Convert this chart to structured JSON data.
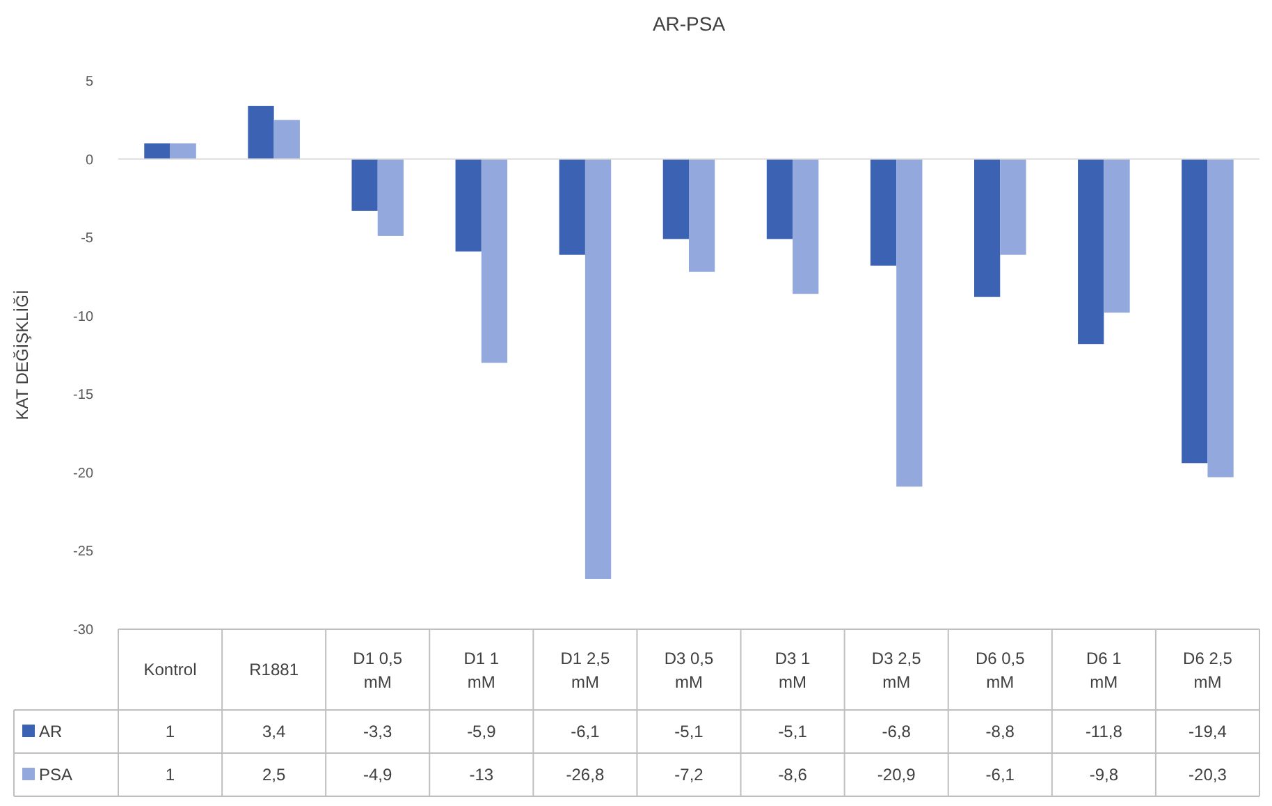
{
  "chart_data": {
    "type": "bar",
    "title": "AR-PSA",
    "ylabel": "KAT DEĞİŞKLİĞİ",
    "categories": [
      "Kontrol",
      "R1881",
      "D1 0,5 mM",
      "D1 1 mM",
      "D1 2,5 mM",
      "D3 0,5 mM",
      "D3 1 mM",
      "D3 2,5 mM",
      "D6 0,5 mM",
      "D6 1 mM",
      "D6 2,5 mM"
    ],
    "series": [
      {
        "name": "AR",
        "color": "#3c62b3",
        "values": [
          1,
          3.4,
          -3.3,
          -5.9,
          -6.1,
          -5.1,
          -5.1,
          -6.8,
          -8.8,
          -11.8,
          -19.4
        ],
        "value_labels": [
          "1",
          "3,4",
          "-3,3",
          "-5,9",
          "-6,1",
          "-5,1",
          "-5,1",
          "-6,8",
          "-8,8",
          "-11,8",
          "-19,4"
        ]
      },
      {
        "name": "PSA",
        "color": "#93a9dd",
        "values": [
          1,
          2.5,
          -4.9,
          -13,
          -26.8,
          -7.2,
          -8.6,
          -20.9,
          -6.1,
          -9.8,
          -20.3
        ],
        "value_labels": [
          "1",
          "2,5",
          "-4,9",
          "-13",
          "-26,8",
          "-7,2",
          "-8,6",
          "-20,9",
          "-6,1",
          "-9,8",
          "-20,3"
        ]
      }
    ],
    "ylim": [
      -30,
      5
    ],
    "yticks": [
      -30,
      -25,
      -20,
      -15,
      -10,
      -5,
      0,
      5
    ],
    "legend": "bottom"
  }
}
